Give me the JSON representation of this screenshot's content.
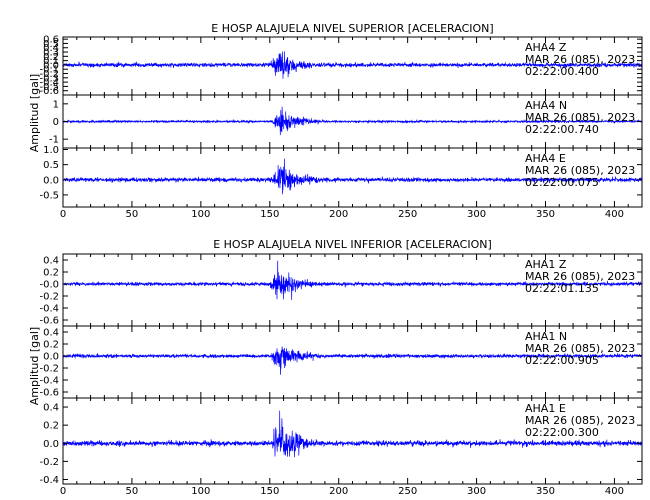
{
  "chart_data": [
    {
      "type": "line",
      "title": "E HOSP ALAJUELA NIVEL SUPERIOR [ACELERACION]",
      "ylabel": "Amplitud [gal]",
      "xlabel": "",
      "xlim": [
        0,
        420
      ],
      "x_ticks": [
        0,
        50,
        100,
        150,
        200,
        250,
        300,
        350,
        400
      ],
      "grid": false,
      "line_color": "#0000ff",
      "panels": [
        {
          "station": "AHA4",
          "component": "Z",
          "date": "MAR 26 (085), 2023",
          "time": "02:22:00.400",
          "ylim": [
            -0.7,
            0.65
          ],
          "y_ticks": [
            0.6,
            0.5,
            0.4,
            0.3,
            0.2,
            0.1,
            0.0,
            -0.1,
            -0.2,
            -0.3,
            -0.4,
            -0.5,
            -0.6
          ],
          "y_tick_labels": [
            "0.6",
            "0.5",
            "0.4",
            "0.3",
            "0.2",
            "0.1",
            "0.0",
            "-0.1",
            "-0.2",
            "-0.3",
            "-0.4",
            "-0.5",
            "-0.6"
          ],
          "noise": 0.04,
          "event_onset": 150,
          "event_peak_time": 157,
          "event_peak": 0.55,
          "event_decay": 14
        },
        {
          "station": "AHA4",
          "component": "N",
          "date": "MAR 26 (085), 2023",
          "time": "02:22:00.740",
          "ylim": [
            -1.5,
            1.5
          ],
          "y_ticks": [
            1,
            0,
            -1
          ],
          "y_tick_labels": [
            "1",
            "0",
            "-1"
          ],
          "noise": 0.05,
          "event_onset": 152,
          "event_peak_time": 159,
          "event_peak": 1.35,
          "event_decay": 12
        },
        {
          "station": "AHA4",
          "component": "E",
          "date": "MAR 26 (085), 2023",
          "time": "02:22:00.075",
          "ylim": [
            -0.9,
            1.05
          ],
          "y_ticks": [
            1.0,
            0.5,
            0.0,
            -0.5
          ],
          "y_tick_labels": [
            "1.0",
            "0.5",
            "0.0",
            "-0.5"
          ],
          "noise": 0.06,
          "event_onset": 151,
          "event_peak_time": 159,
          "event_peak": 0.85,
          "event_decay": 14
        }
      ]
    },
    {
      "type": "line",
      "title": "E HOSP ALAJUELA NIVEL INFERIOR [ACELERACION]",
      "ylabel": "Amplitud [gal]",
      "xlabel": "",
      "xlim": [
        0,
        420
      ],
      "x_ticks": [
        0,
        50,
        100,
        150,
        200,
        250,
        300,
        350,
        400
      ],
      "grid": false,
      "line_color": "#0000ff",
      "panels": [
        {
          "station": "AHA1",
          "component": "Z",
          "date": "MAR 26 (085), 2023",
          "time": "02:22:01.135",
          "ylim": [
            -0.7,
            0.5
          ],
          "y_ticks": [
            0.4,
            0.2,
            0.0,
            -0.2,
            -0.4,
            -0.6
          ],
          "y_tick_labels": [
            "0.4",
            "0.2",
            "-0.0",
            "-0.2",
            "-0.4",
            "-0.6"
          ],
          "noise": 0.025,
          "event_onset": 150,
          "event_peak_time": 157,
          "event_peak": 0.45,
          "event_decay": 14
        },
        {
          "station": "AHA1",
          "component": "N",
          "date": "MAR 26 (085), 2023",
          "time": "02:22:00.905",
          "ylim": [
            -0.7,
            0.5
          ],
          "y_ticks": [
            0.4,
            0.2,
            0.0,
            -0.2,
            -0.4,
            -0.6
          ],
          "y_tick_labels": [
            "0.4",
            "0.2",
            "0.0",
            "-0.2",
            "-0.4",
            "-0.6"
          ],
          "noise": 0.025,
          "event_onset": 151,
          "event_peak_time": 158,
          "event_peak": 0.48,
          "event_decay": 13
        },
        {
          "station": "AHA1",
          "component": "E",
          "date": "MAR 26 (085), 2023",
          "time": "02:22:00.300",
          "ylim": [
            -0.45,
            0.5
          ],
          "y_ticks": [
            0.4,
            0.2,
            0.0,
            -0.2,
            -0.4
          ],
          "y_tick_labels": [
            "0.4",
            "0.2",
            "0.0",
            "-0.2",
            "-0.4"
          ],
          "noise": 0.025,
          "event_onset": 151,
          "event_peak_time": 158,
          "event_peak": 0.42,
          "event_decay": 13
        }
      ]
    }
  ]
}
